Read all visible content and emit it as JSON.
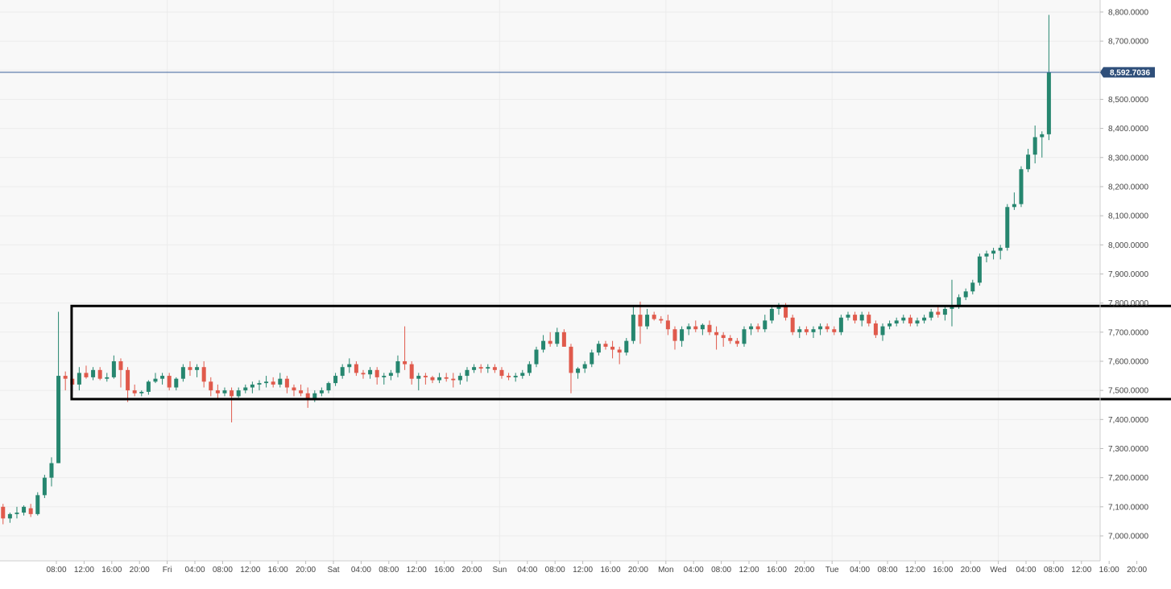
{
  "chart_data": {
    "type": "candlestick",
    "title": "",
    "xlabel": "",
    "ylabel": "",
    "ylim": [
      6925,
      8825
    ],
    "grid": true,
    "colors": {
      "up": "#26866f",
      "down": "#e05a4c",
      "box": "#000000",
      "current_line": "#3a5f9a",
      "current_label_bg": "#2f4f7a"
    },
    "x_ticks": [
      "08:00",
      "12:00",
      "16:00",
      "20:00",
      "Fri",
      "04:00",
      "08:00",
      "12:00",
      "16:00",
      "20:00",
      "Sat",
      "04:00",
      "08:00",
      "12:00",
      "16:00",
      "20:00",
      "Sun",
      "04:00",
      "08:00",
      "12:00",
      "16:00",
      "20:00",
      "Mon",
      "04:00",
      "08:00",
      "12:00",
      "16:00",
      "20:00",
      "Tue",
      "04:00",
      "08:00",
      "12:00",
      "16:00",
      "20:00",
      "Wed",
      "04:00",
      "08:00",
      "12:00",
      "16:00",
      "20:00"
    ],
    "y_ticks": [
      "7,000.0000",
      "7,100.0000",
      "7,200.0000",
      "7,300.0000",
      "7,400.0000",
      "7,500.0000",
      "7,600.0000",
      "7,700.0000",
      "7,800.0000",
      "7,900.0000",
      "8,000.0000",
      "8,100.0000",
      "8,200.0000",
      "8,300.0000",
      "8,400.0000",
      "8,500.0000",
      "8,600.0000",
      "8,700.0000",
      "8,800.0000"
    ],
    "current_price": 8592.7036,
    "current_price_label": "8,592.7036",
    "range_box": {
      "y_low": 7470,
      "y_high": 7790,
      "from_hour": 10.2,
      "to_hour": 193.6
    },
    "candles_ohlc": [
      [
        7100,
        7110,
        7040,
        7060
      ],
      [
        7060,
        7080,
        7045,
        7075
      ],
      [
        7075,
        7100,
        7060,
        7080
      ],
      [
        7080,
        7105,
        7070,
        7100
      ],
      [
        7095,
        7110,
        7065,
        7075
      ],
      [
        7075,
        7150,
        7070,
        7140
      ],
      [
        7140,
        7210,
        7130,
        7200
      ],
      [
        7200,
        7270,
        7170,
        7250
      ],
      [
        7250,
        7770,
        7250,
        7550
      ],
      [
        7550,
        7565,
        7500,
        7540
      ],
      [
        7540,
        7550,
        7490,
        7520
      ],
      [
        7520,
        7580,
        7500,
        7560
      ],
      [
        7560,
        7585,
        7540,
        7545
      ],
      [
        7545,
        7580,
        7535,
        7570
      ],
      [
        7570,
        7580,
        7535,
        7540
      ],
      [
        7540,
        7560,
        7530,
        7545
      ],
      [
        7545,
        7620,
        7540,
        7600
      ],
      [
        7600,
        7610,
        7510,
        7570
      ],
      [
        7570,
        7580,
        7460,
        7500
      ],
      [
        7500,
        7520,
        7480,
        7490
      ],
      [
        7490,
        7500,
        7480,
        7495
      ],
      [
        7495,
        7535,
        7485,
        7530
      ],
      [
        7530,
        7560,
        7525,
        7540
      ],
      [
        7540,
        7560,
        7520,
        7550
      ],
      [
        7550,
        7560,
        7500,
        7510
      ],
      [
        7510,
        7545,
        7500,
        7540
      ],
      [
        7540,
        7590,
        7530,
        7580
      ],
      [
        7580,
        7600,
        7550,
        7570
      ],
      [
        7570,
        7590,
        7545,
        7580
      ],
      [
        7580,
        7600,
        7510,
        7530
      ],
      [
        7530,
        7545,
        7480,
        7500
      ],
      [
        7500,
        7520,
        7470,
        7490
      ],
      [
        7490,
        7510,
        7480,
        7500
      ],
      [
        7500,
        7510,
        7390,
        7480
      ],
      [
        7480,
        7510,
        7475,
        7500
      ],
      [
        7500,
        7520,
        7490,
        7510
      ],
      [
        7510,
        7530,
        7490,
        7520
      ],
      [
        7520,
        7535,
        7500,
        7525
      ],
      [
        7525,
        7550,
        7510,
        7530
      ],
      [
        7530,
        7545,
        7510,
        7520
      ],
      [
        7520,
        7560,
        7510,
        7540
      ],
      [
        7540,
        7550,
        7490,
        7510
      ],
      [
        7510,
        7520,
        7480,
        7500
      ],
      [
        7500,
        7520,
        7480,
        7490
      ],
      [
        7490,
        7510,
        7440,
        7470
      ],
      [
        7470,
        7500,
        7460,
        7490
      ],
      [
        7490,
        7510,
        7480,
        7500
      ],
      [
        7500,
        7530,
        7490,
        7525
      ],
      [
        7525,
        7560,
        7515,
        7550
      ],
      [
        7550,
        7590,
        7540,
        7580
      ],
      [
        7580,
        7610,
        7560,
        7590
      ],
      [
        7590,
        7600,
        7550,
        7560
      ],
      [
        7560,
        7570,
        7540,
        7555
      ],
      [
        7555,
        7580,
        7540,
        7570
      ],
      [
        7570,
        7580,
        7520,
        7545
      ],
      [
        7545,
        7560,
        7520,
        7550
      ],
      [
        7550,
        7570,
        7535,
        7560
      ],
      [
        7560,
        7620,
        7545,
        7600
      ],
      [
        7600,
        7720,
        7570,
        7590
      ],
      [
        7590,
        7600,
        7520,
        7540
      ],
      [
        7540,
        7560,
        7500,
        7550
      ],
      [
        7550,
        7560,
        7520,
        7545
      ],
      [
        7545,
        7550,
        7525,
        7535
      ],
      [
        7535,
        7560,
        7525,
        7545
      ],
      [
        7545,
        7560,
        7530,
        7540
      ],
      [
        7540,
        7560,
        7510,
        7535
      ],
      [
        7535,
        7560,
        7520,
        7550
      ],
      [
        7550,
        7580,
        7530,
        7570
      ],
      [
        7570,
        7590,
        7560,
        7580
      ],
      [
        7580,
        7590,
        7560,
        7575
      ],
      [
        7575,
        7590,
        7560,
        7580
      ],
      [
        7580,
        7590,
        7560,
        7570
      ],
      [
        7570,
        7580,
        7540,
        7550
      ],
      [
        7550,
        7560,
        7535,
        7545
      ],
      [
        7545,
        7560,
        7530,
        7550
      ],
      [
        7550,
        7570,
        7540,
        7560
      ],
      [
        7560,
        7600,
        7550,
        7590
      ],
      [
        7590,
        7650,
        7580,
        7640
      ],
      [
        7640,
        7690,
        7630,
        7670
      ],
      [
        7670,
        7700,
        7650,
        7660
      ],
      [
        7660,
        7715,
        7650,
        7700
      ],
      [
        7700,
        7710,
        7650,
        7650
      ],
      [
        7650,
        7660,
        7490,
        7560
      ],
      [
        7560,
        7580,
        7540,
        7575
      ],
      [
        7575,
        7600,
        7560,
        7590
      ],
      [
        7590,
        7640,
        7580,
        7630
      ],
      [
        7630,
        7670,
        7620,
        7660
      ],
      [
        7660,
        7670,
        7640,
        7650
      ],
      [
        7650,
        7670,
        7610,
        7640
      ],
      [
        7640,
        7650,
        7590,
        7630
      ],
      [
        7630,
        7680,
        7620,
        7670
      ],
      [
        7670,
        7790,
        7660,
        7760
      ],
      [
        7760,
        7805,
        7660,
        7720
      ],
      [
        7720,
        7780,
        7710,
        7760
      ],
      [
        7760,
        7770,
        7740,
        7745
      ],
      [
        7745,
        7755,
        7730,
        7740
      ],
      [
        7740,
        7760,
        7690,
        7710
      ],
      [
        7710,
        7720,
        7640,
        7670
      ],
      [
        7670,
        7720,
        7650,
        7710
      ],
      [
        7710,
        7730,
        7690,
        7720
      ],
      [
        7720,
        7740,
        7700,
        7710
      ],
      [
        7710,
        7730,
        7690,
        7725
      ],
      [
        7725,
        7740,
        7690,
        7700
      ],
      [
        7700,
        7720,
        7640,
        7690
      ],
      [
        7690,
        7700,
        7650,
        7680
      ],
      [
        7680,
        7690,
        7660,
        7670
      ],
      [
        7670,
        7680,
        7650,
        7660
      ],
      [
        7660,
        7720,
        7650,
        7710
      ],
      [
        7710,
        7730,
        7690,
        7720
      ],
      [
        7720,
        7730,
        7700,
        7710
      ],
      [
        7710,
        7760,
        7700,
        7740
      ],
      [
        7740,
        7790,
        7730,
        7780
      ],
      [
        7780,
        7800,
        7760,
        7790
      ],
      [
        7790,
        7800,
        7740,
        7750
      ],
      [
        7750,
        7760,
        7690,
        7700
      ],
      [
        7700,
        7720,
        7680,
        7710
      ],
      [
        7710,
        7720,
        7690,
        7700
      ],
      [
        7700,
        7720,
        7680,
        7710
      ],
      [
        7710,
        7730,
        7690,
        7720
      ],
      [
        7720,
        7730,
        7700,
        7710
      ],
      [
        7710,
        7720,
        7690,
        7700
      ],
      [
        7700,
        7760,
        7690,
        7750
      ],
      [
        7750,
        7770,
        7740,
        7760
      ],
      [
        7760,
        7770,
        7730,
        7740
      ],
      [
        7740,
        7770,
        7720,
        7760
      ],
      [
        7760,
        7770,
        7720,
        7730
      ],
      [
        7730,
        7740,
        7680,
        7690
      ],
      [
        7690,
        7730,
        7670,
        7720
      ],
      [
        7720,
        7740,
        7710,
        7730
      ],
      [
        7730,
        7750,
        7720,
        7740
      ],
      [
        7740,
        7760,
        7730,
        7750
      ],
      [
        7750,
        7760,
        7720,
        7730
      ],
      [
        7730,
        7750,
        7720,
        7740
      ],
      [
        7740,
        7760,
        7730,
        7750
      ],
      [
        7750,
        7780,
        7740,
        7770
      ],
      [
        7770,
        7790,
        7750,
        7760
      ],
      [
        7760,
        7790,
        7740,
        7780
      ],
      [
        7780,
        7880,
        7720,
        7790
      ],
      [
        7790,
        7830,
        7780,
        7820
      ],
      [
        7820,
        7850,
        7810,
        7840
      ],
      [
        7840,
        7880,
        7830,
        7870
      ],
      [
        7870,
        7970,
        7860,
        7960
      ],
      [
        7960,
        7980,
        7940,
        7970
      ],
      [
        7970,
        7990,
        7950,
        7980
      ],
      [
        7980,
        8000,
        7950,
        7990
      ],
      [
        7990,
        8140,
        7980,
        8130
      ],
      [
        8130,
        8180,
        8120,
        8140
      ],
      [
        8140,
        8270,
        8130,
        8260
      ],
      [
        8260,
        8330,
        8250,
        8310
      ],
      [
        8310,
        8410,
        8280,
        8370
      ],
      [
        8370,
        8390,
        8300,
        8380
      ],
      [
        8380,
        8790,
        8360,
        8593
      ]
    ]
  }
}
